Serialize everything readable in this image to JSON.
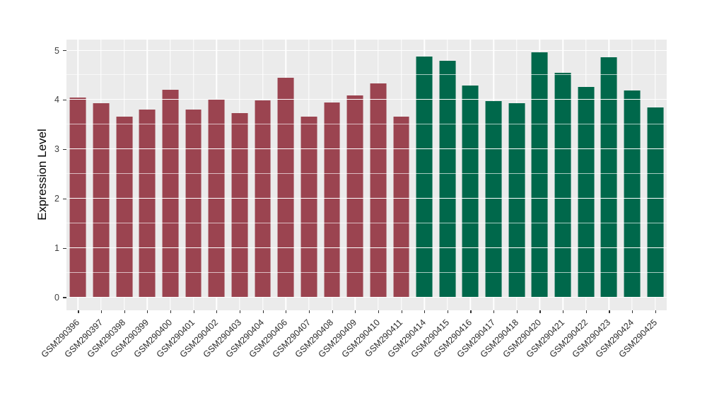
{
  "chart_data": {
    "type": "bar",
    "title": "",
    "xlabel": "",
    "ylabel": "Expression Level",
    "ylim": [
      0,
      5
    ],
    "yticks": [
      0,
      1,
      2,
      3,
      4,
      5
    ],
    "yticks_minor": [
      0.5,
      1.5,
      2.5,
      3.5,
      4.5
    ],
    "grid": true,
    "legend_position": "none",
    "panel_bg": "#EBEBEB",
    "grid_color": "#FFFFFF",
    "group_colors": {
      "group1": "#9B4450",
      "group2": "#00684B"
    },
    "bars": [
      {
        "label": "GSM290396",
        "value": 4.05,
        "group": "group1"
      },
      {
        "label": "GSM290397",
        "value": 3.94,
        "group": "group1"
      },
      {
        "label": "GSM290398",
        "value": 3.66,
        "group": "group1"
      },
      {
        "label": "GSM290399",
        "value": 3.81,
        "group": "group1"
      },
      {
        "label": "GSM290400",
        "value": 4.21,
        "group": "group1"
      },
      {
        "label": "GSM290401",
        "value": 3.81,
        "group": "group1"
      },
      {
        "label": "GSM290402",
        "value": 4.01,
        "group": "group1"
      },
      {
        "label": "GSM290403",
        "value": 3.74,
        "group": "group1"
      },
      {
        "label": "GSM290404",
        "value": 3.99,
        "group": "group1"
      },
      {
        "label": "GSM290406",
        "value": 4.45,
        "group": "group1"
      },
      {
        "label": "GSM290407",
        "value": 3.67,
        "group": "group1"
      },
      {
        "label": "GSM290408",
        "value": 3.95,
        "group": "group1"
      },
      {
        "label": "GSM290409",
        "value": 4.09,
        "group": "group1"
      },
      {
        "label": "GSM290410",
        "value": 4.33,
        "group": "group1"
      },
      {
        "label": "GSM290411",
        "value": 3.67,
        "group": "group1"
      },
      {
        "label": "GSM290414",
        "value": 4.88,
        "group": "group2"
      },
      {
        "label": "GSM290415",
        "value": 4.8,
        "group": "group2"
      },
      {
        "label": "GSM290416",
        "value": 4.29,
        "group": "group2"
      },
      {
        "label": "GSM290417",
        "value": 3.98,
        "group": "group2"
      },
      {
        "label": "GSM290418",
        "value": 3.93,
        "group": "group2"
      },
      {
        "label": "GSM290420",
        "value": 4.96,
        "group": "group2"
      },
      {
        "label": "GSM290421",
        "value": 4.55,
        "group": "group2"
      },
      {
        "label": "GSM290422",
        "value": 4.26,
        "group": "group2"
      },
      {
        "label": "GSM290423",
        "value": 4.87,
        "group": "group2"
      },
      {
        "label": "GSM290424",
        "value": 4.19,
        "group": "group2"
      },
      {
        "label": "GSM290425",
        "value": 3.85,
        "group": "group2"
      }
    ]
  }
}
